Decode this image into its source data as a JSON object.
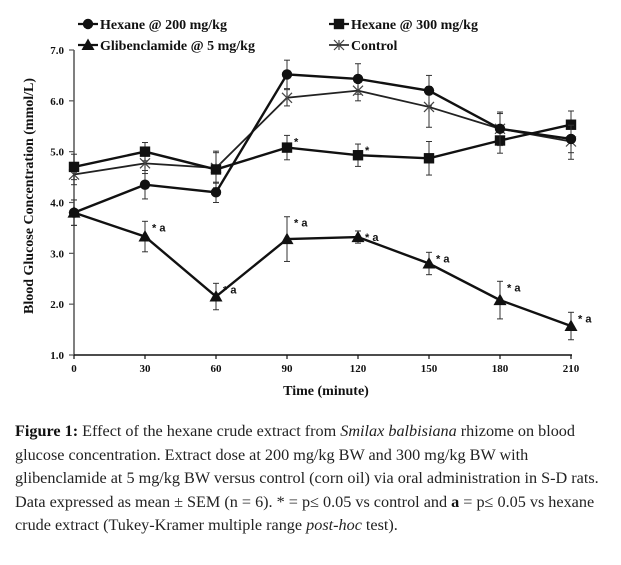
{
  "chart_data": {
    "type": "line",
    "title": "",
    "xlabel": "Time (minute)",
    "ylabel": "Blood Glucose Concentration (mmol/L)",
    "x": [
      0,
      30,
      60,
      90,
      120,
      150,
      180,
      210
    ],
    "xticks": [
      "0",
      "30",
      "60",
      "90",
      "120",
      "150",
      "180",
      "210"
    ],
    "yticks": [
      "1.0",
      "2.0",
      "3.0",
      "4.0",
      "5.0",
      "6.0",
      "7.0"
    ],
    "xlim": [
      0,
      210
    ],
    "ylim": [
      1.0,
      7.0
    ],
    "grid": false,
    "legend_position": "top",
    "series": [
      {
        "name": "Hexane @ 200 mg/kg",
        "marker": "circle",
        "values": [
          3.8,
          4.35,
          4.2,
          6.52,
          6.43,
          6.2,
          5.45,
          5.25
        ],
        "errors": [
          0.25,
          0.28,
          0.2,
          0.28,
          0.3,
          0.3,
          0.33,
          0.27
        ],
        "annotations": [
          "",
          "",
          "",
          "",
          "",
          "",
          "",
          ""
        ]
      },
      {
        "name": "Hexane @ 300 mg/kg",
        "marker": "square",
        "values": [
          4.7,
          5.0,
          4.65,
          5.08,
          4.93,
          4.87,
          5.22,
          5.53
        ],
        "errors": [
          0.25,
          0.18,
          0.36,
          0.24,
          0.22,
          0.33,
          0.25,
          0.27
        ],
        "annotations": [
          "",
          "",
          "",
          "*",
          "*",
          "",
          "",
          ""
        ]
      },
      {
        "name": "Glibenclamide @ 5 mg/kg",
        "marker": "triangle",
        "values": [
          3.8,
          3.33,
          2.15,
          3.28,
          3.32,
          2.8,
          2.08,
          1.57
        ],
        "errors": [
          0.25,
          0.3,
          0.26,
          0.44,
          0.12,
          0.22,
          0.37,
          0.27
        ],
        "annotations": [
          "",
          "* a",
          "* a",
          "* a",
          "* a",
          "* a",
          "* a",
          "* a"
        ]
      },
      {
        "name": "Control",
        "marker": "star",
        "values": [
          4.55,
          4.77,
          4.68,
          6.06,
          6.2,
          5.88,
          5.45,
          5.2
        ],
        "errors": [
          0.2,
          0.2,
          0.3,
          0.16,
          0.2,
          0.4,
          0.3,
          0.35
        ],
        "annotations": [
          "",
          "",
          "",
          "",
          "",
          "",
          "",
          ""
        ]
      }
    ]
  },
  "caption": {
    "label": "Figure 1:",
    "text_1": " Effect of the hexane crude extract from ",
    "species": "Smilax balbisiana",
    "text_2": " rhizome on blood glucose concentration. Extract dose at 200 mg/kg BW and 300 mg/kg BW with glibenclamide at 5 mg/kg BW versus control (corn oil) via oral administration in S-D rats. Data expressed as mean ± SEM (n = 6). * = p≤ 0.05 vs control and ",
    "bold_a": "a",
    "text_3": " = p≤ 0.05 vs hexane crude extract (Tukey-Kramer multiple range ",
    "posthoc": "post-hoc",
    "text_4": " test)."
  }
}
